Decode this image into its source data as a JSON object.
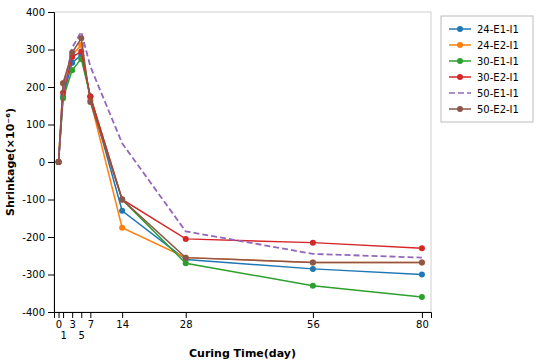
{
  "chart_data": {
    "type": "line",
    "xlabel": "Curing Time(day)",
    "ylabel": "Shrinkage(×10⁻⁶)",
    "x": [
      0,
      1,
      3,
      5,
      7,
      14,
      28,
      56,
      80
    ],
    "xlim": [
      -1,
      82
    ],
    "xticks": [
      0,
      1,
      3,
      5,
      7,
      14,
      28,
      56,
      80
    ],
    "ylim": [
      -400,
      400
    ],
    "yticks": [
      -400,
      -300,
      -200,
      -100,
      0,
      100,
      200,
      300,
      400
    ],
    "grid": false,
    "legend": "right",
    "series": [
      {
        "name": "24-E1-I1",
        "marker": "circle",
        "line_style": "solid",
        "values": [
          0,
          175,
          265,
          285,
          175,
          -130,
          -260,
          -285,
          -300
        ]
      },
      {
        "name": "24-E2-I1",
        "marker": "circle",
        "line_style": "solid",
        "values": [
          0,
          210,
          285,
          312,
          165,
          -175,
          -255,
          -268,
          -268
        ]
      },
      {
        "name": "30-E1-I1",
        "marker": "circle",
        "line_style": "solid",
        "values": [
          0,
          170,
          245,
          275,
          175,
          -100,
          -270,
          -330,
          -360
        ]
      },
      {
        "name": "30-E2-I1",
        "marker": "circle",
        "line_style": "solid",
        "values": [
          0,
          185,
          280,
          295,
          175,
          -100,
          -205,
          -215,
          -230
        ]
      },
      {
        "name": "50-E1-I1",
        "marker": "none",
        "line_style": "dashed",
        "values": [
          0,
          190,
          305,
          347,
          255,
          50,
          -185,
          -245,
          -255
        ]
      },
      {
        "name": "50-E2-I1",
        "marker": "circle",
        "line_style": "solid",
        "values": [
          0,
          210,
          292,
          330,
          160,
          -100,
          -255,
          -268,
          -268
        ]
      }
    ]
  }
}
